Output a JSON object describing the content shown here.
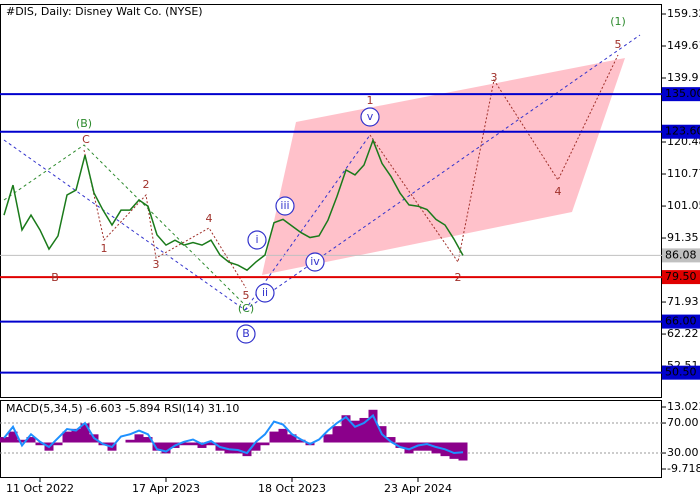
{
  "chart_data": [
    {
      "type": "line",
      "title": "#DIS, Daily:  Disney Walt Co. (NYSE)",
      "categories": [
        null,
        null,
        null,
        null,
        "11 Oct 2022",
        null,
        null,
        null,
        null,
        null,
        null,
        null,
        null,
        null,
        null,
        null,
        null,
        null,
        "17 Apr 2023",
        null,
        null,
        null,
        null,
        null,
        null,
        null,
        null,
        null,
        null,
        null,
        null,
        null,
        "18 Oct 2023",
        null,
        null,
        null,
        null,
        null,
        null,
        null,
        null,
        null,
        null,
        null,
        null,
        null,
        "23 Apr 2024",
        null,
        null,
        null,
        null,
        null
      ],
      "values": [
        98.3,
        107.4,
        93.8,
        98.3,
        93.8,
        88,
        92,
        104.4,
        105.9,
        116.5,
        105,
        99.8,
        95.3,
        99.8,
        99.8,
        102.9,
        101,
        92.3,
        89.2,
        90.7,
        89.2,
        90,
        89.2,
        90.7,
        86.2,
        84,
        83.1,
        81.6,
        84.1,
        86.2,
        96,
        97,
        95,
        93,
        91.5,
        92,
        96.8,
        104,
        112,
        110.5,
        113.5,
        121,
        114,
        110,
        105,
        101.4,
        101,
        100,
        97,
        95.3,
        91,
        86.08
      ],
      "color": "#1a7a1a",
      "ylim": [
        43.12,
        162.35
      ],
      "yticks": [
        159.32,
        149.61,
        139.9,
        120.48,
        110.77,
        101.05,
        91.35,
        71.93,
        62.22,
        52.51
      ],
      "levels": [
        {
          "value": 135,
          "label": "135.00",
          "color": "#0000cd"
        },
        {
          "value": 123.6,
          "label": "123.60",
          "color": "#0000cd"
        },
        {
          "value": 86.08,
          "color": "#c0c0c0"
        },
        {
          "value": 79.5,
          "label": "79.50",
          "color": "#e00000"
        },
        {
          "value": 66,
          "label": "66.00",
          "color": "#0000cd"
        },
        {
          "value": 50.5,
          "label": "50.50",
          "color": "#0000cd"
        }
      ],
      "annotations": [
        {
          "text": "(1)",
          "color": "#2e8b2e"
        },
        {
          "text": "5",
          "color": "#a0302a"
        },
        {
          "text": "3",
          "color": "#a0302a"
        },
        {
          "text": "4",
          "color": "#a0302a"
        },
        {
          "text": "2",
          "color": "#a0302a"
        },
        {
          "text": "1",
          "color": "#a0302a"
        },
        {
          "text": "v",
          "color": "#3333cc"
        },
        {
          "text": "(B)",
          "color": "#2e8b2e"
        },
        {
          "text": "C",
          "color": "#a0302a"
        },
        {
          "text": "2",
          "color": "#a0302a"
        },
        {
          "text": "4",
          "color": "#a0302a"
        },
        {
          "text": "1",
          "color": "#a0302a"
        },
        {
          "text": "3",
          "color": "#a0302a"
        },
        {
          "text": "B",
          "color": "#a0302a"
        },
        {
          "text": "iii",
          "color": "#3333cc"
        },
        {
          "text": "i",
          "color": "#3333cc"
        },
        {
          "text": "iv",
          "color": "#3333cc"
        },
        {
          "text": "ii",
          "color": "#3333cc"
        },
        {
          "text": "5",
          "color": "#a0302a"
        },
        {
          "text": "(C)",
          "color": "#2e8b2e"
        },
        {
          "text": "B",
          "color": "#3333cc"
        }
      ]
    },
    {
      "type": "macd",
      "title": "MACD(5,34,5) -6.603 -5.894 RSI(14) 31.10",
      "values": [
        2,
        4,
        1,
        2,
        -1,
        -3,
        -1,
        4,
        5,
        7,
        3,
        -1,
        -3,
        0,
        1,
        3,
        2,
        -3,
        -4,
        -2,
        -1,
        -1,
        -2,
        -1,
        -3,
        -4,
        -4,
        -5,
        -3,
        -1,
        4,
        5,
        3,
        1,
        -1,
        0,
        3,
        6,
        10,
        8,
        9,
        12,
        6,
        2,
        -2,
        -4,
        -3,
        -3,
        -4,
        -5,
        -6,
        -6.603
      ],
      "color": "#8b008b",
      "series": [
        {
          "color": "#1e90ff",
          "axis": "y2",
          "values": [
            50,
            65,
            40,
            55,
            45,
            38,
            50,
            62,
            60,
            70,
            50,
            42,
            38,
            52,
            55,
            60,
            55,
            35,
            32,
            40,
            45,
            48,
            42,
            46,
            38,
            35,
            34,
            30,
            45,
            55,
            72,
            68,
            55,
            48,
            42,
            48,
            60,
            70,
            78,
            65,
            70,
            80,
            55,
            45,
            38,
            35,
            40,
            42,
            38,
            35,
            30,
            31.1
          ]
        }
      ],
      "ylim": [
        -13.02,
        15.59
      ],
      "yticks": [
        13.023,
        -9.718
      ],
      "y2lim": [
        -3.3,
        100.7
      ],
      "y2ticks": [
        {
          "value": 70,
          "label": "70.00"
        },
        {
          "value": 30,
          "label": "30.00"
        }
      ],
      "y2grid": true
    }
  ]
}
